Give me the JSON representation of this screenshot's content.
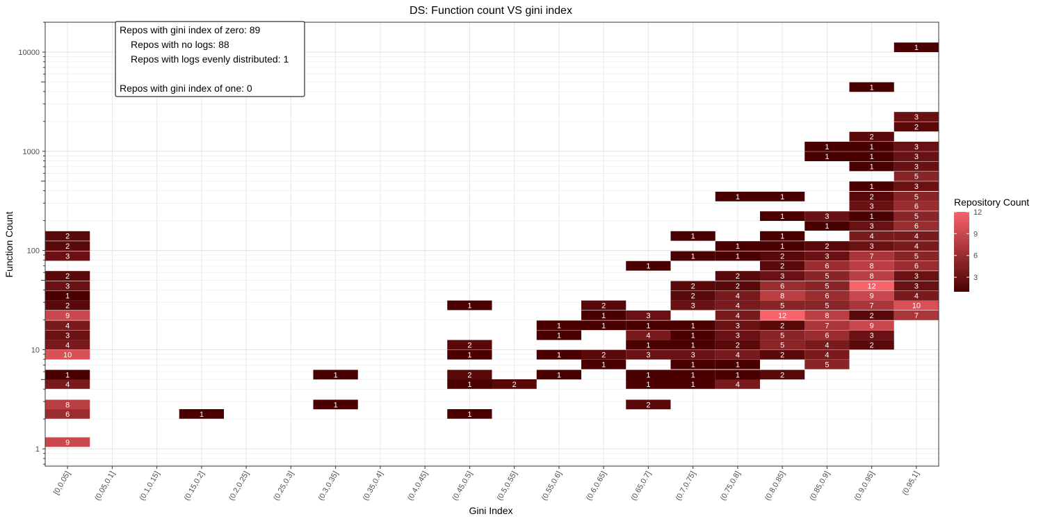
{
  "chart_data": {
    "type": "heatmap",
    "title": "DS: Function count VS gini index",
    "xlabel": "Gini Index",
    "ylabel": "Function Count",
    "y_scale": "log10",
    "ylim": [
      0.67,
      20000
    ],
    "grid": true,
    "legend_placement": "right",
    "legend": {
      "title": "Repository Count",
      "range": [
        1,
        12
      ],
      "ticks": [
        3,
        6,
        9,
        12
      ],
      "color_low": "#4a0000",
      "color_high": "#f8636a"
    },
    "x_categories": [
      "[0,0.05]",
      "(0.05,0.1]",
      "(0.1,0.15]",
      "(0.15,0.2]",
      "(0.2,0.25]",
      "(0.25,0.3]",
      "(0.3,0.35]",
      "(0.35,0.4]",
      "(0.4,0.45]",
      "(0.45,0.5]",
      "(0.5,0.55]",
      "(0.55,0.6]",
      "(0.6,0.65]",
      "(0.65,0.7]",
      "(0.7,0.75]",
      "(0.75,0.8]",
      "(0.8,0.85]",
      "(0.85,0.9]",
      "(0.9,0.95]",
      "(0.95,1]"
    ],
    "y_ticks": [
      {
        "value": 1,
        "label": "1"
      },
      {
        "value": 10,
        "label": "10"
      },
      {
        "value": 100,
        "label": "100"
      },
      {
        "value": 1000,
        "label": "1000"
      },
      {
        "value": 10000,
        "label": "10000"
      }
    ],
    "cell_log_height": 0.0966,
    "cells": [
      {
        "x": 0,
        "y": 1.17,
        "count": 9
      },
      {
        "x": 0,
        "y": 2.25,
        "count": 6
      },
      {
        "x": 0,
        "y": 2.8,
        "count": 8
      },
      {
        "x": 0,
        "y": 4.5,
        "count": 4
      },
      {
        "x": 0,
        "y": 5.6,
        "count": 1
      },
      {
        "x": 0,
        "y": 8.9,
        "count": 10
      },
      {
        "x": 0,
        "y": 11.2,
        "count": 4
      },
      {
        "x": 0,
        "y": 14,
        "count": 3
      },
      {
        "x": 0,
        "y": 17.6,
        "count": 4
      },
      {
        "x": 0,
        "y": 22.2,
        "count": 9
      },
      {
        "x": 0,
        "y": 28,
        "count": 2
      },
      {
        "x": 0,
        "y": 35,
        "count": 1
      },
      {
        "x": 0,
        "y": 44,
        "count": 3
      },
      {
        "x": 0,
        "y": 55.5,
        "count": 2
      },
      {
        "x": 0,
        "y": 88,
        "count": 3
      },
      {
        "x": 0,
        "y": 111,
        "count": 2
      },
      {
        "x": 0,
        "y": 140,
        "count": 2
      },
      {
        "x": 3,
        "y": 2.25,
        "count": 1
      },
      {
        "x": 6,
        "y": 2.8,
        "count": 1
      },
      {
        "x": 6,
        "y": 5.6,
        "count": 1
      },
      {
        "x": 9,
        "y": 2.25,
        "count": 1
      },
      {
        "x": 9,
        "y": 4.5,
        "count": 1
      },
      {
        "x": 9,
        "y": 5.6,
        "count": 2
      },
      {
        "x": 9,
        "y": 8.9,
        "count": 1
      },
      {
        "x": 9,
        "y": 11.2,
        "count": 2
      },
      {
        "x": 9,
        "y": 28,
        "count": 1
      },
      {
        "x": 10,
        "y": 4.5,
        "count": 2
      },
      {
        "x": 11,
        "y": 5.6,
        "count": 1
      },
      {
        "x": 11,
        "y": 8.9,
        "count": 1
      },
      {
        "x": 11,
        "y": 14,
        "count": 1
      },
      {
        "x": 11,
        "y": 17.6,
        "count": 1
      },
      {
        "x": 12,
        "y": 7.1,
        "count": 1
      },
      {
        "x": 12,
        "y": 8.9,
        "count": 2
      },
      {
        "x": 12,
        "y": 17.6,
        "count": 1
      },
      {
        "x": 12,
        "y": 22.2,
        "count": 1
      },
      {
        "x": 12,
        "y": 28,
        "count": 2
      },
      {
        "x": 13,
        "y": 2.8,
        "count": 2
      },
      {
        "x": 13,
        "y": 4.5,
        "count": 1
      },
      {
        "x": 13,
        "y": 5.6,
        "count": 1
      },
      {
        "x": 13,
        "y": 8.9,
        "count": 3
      },
      {
        "x": 13,
        "y": 11.2,
        "count": 1
      },
      {
        "x": 13,
        "y": 14,
        "count": 4
      },
      {
        "x": 13,
        "y": 17.6,
        "count": 1
      },
      {
        "x": 13,
        "y": 22.2,
        "count": 3
      },
      {
        "x": 13,
        "y": 70,
        "count": 1
      },
      {
        "x": 14,
        "y": 4.5,
        "count": 1
      },
      {
        "x": 14,
        "y": 5.6,
        "count": 1
      },
      {
        "x": 14,
        "y": 7.1,
        "count": 1
      },
      {
        "x": 14,
        "y": 8.9,
        "count": 3
      },
      {
        "x": 14,
        "y": 11.2,
        "count": 1
      },
      {
        "x": 14,
        "y": 14,
        "count": 1
      },
      {
        "x": 14,
        "y": 17.6,
        "count": 1
      },
      {
        "x": 14,
        "y": 28,
        "count": 3
      },
      {
        "x": 14,
        "y": 35,
        "count": 2
      },
      {
        "x": 14,
        "y": 44,
        "count": 2
      },
      {
        "x": 14,
        "y": 88,
        "count": 1
      },
      {
        "x": 14,
        "y": 140,
        "count": 1
      },
      {
        "x": 15,
        "y": 4.5,
        "count": 4
      },
      {
        "x": 15,
        "y": 5.6,
        "count": 1
      },
      {
        "x": 15,
        "y": 7.1,
        "count": 1
      },
      {
        "x": 15,
        "y": 8.9,
        "count": 4
      },
      {
        "x": 15,
        "y": 11.2,
        "count": 2
      },
      {
        "x": 15,
        "y": 14,
        "count": 3
      },
      {
        "x": 15,
        "y": 17.6,
        "count": 3
      },
      {
        "x": 15,
        "y": 22.2,
        "count": 4
      },
      {
        "x": 15,
        "y": 28,
        "count": 4
      },
      {
        "x": 15,
        "y": 35,
        "count": 4
      },
      {
        "x": 15,
        "y": 44,
        "count": 2
      },
      {
        "x": 15,
        "y": 55.5,
        "count": 2
      },
      {
        "x": 15,
        "y": 88,
        "count": 1
      },
      {
        "x": 15,
        "y": 111,
        "count": 1
      },
      {
        "x": 15,
        "y": 350,
        "count": 1
      },
      {
        "x": 16,
        "y": 5.6,
        "count": 2
      },
      {
        "x": 16,
        "y": 8.9,
        "count": 2
      },
      {
        "x": 16,
        "y": 11.2,
        "count": 5
      },
      {
        "x": 16,
        "y": 14,
        "count": 5
      },
      {
        "x": 16,
        "y": 17.6,
        "count": 2
      },
      {
        "x": 16,
        "y": 22.2,
        "count": 12
      },
      {
        "x": 16,
        "y": 28,
        "count": 5
      },
      {
        "x": 16,
        "y": 35,
        "count": 8
      },
      {
        "x": 16,
        "y": 44,
        "count": 6
      },
      {
        "x": 16,
        "y": 55.5,
        "count": 3
      },
      {
        "x": 16,
        "y": 70,
        "count": 2
      },
      {
        "x": 16,
        "y": 88,
        "count": 2
      },
      {
        "x": 16,
        "y": 111,
        "count": 1
      },
      {
        "x": 16,
        "y": 140,
        "count": 1
      },
      {
        "x": 16,
        "y": 222,
        "count": 1
      },
      {
        "x": 16,
        "y": 350,
        "count": 1
      },
      {
        "x": 17,
        "y": 7.1,
        "count": 5
      },
      {
        "x": 17,
        "y": 8.9,
        "count": 4
      },
      {
        "x": 17,
        "y": 11.2,
        "count": 4
      },
      {
        "x": 17,
        "y": 14,
        "count": 6
      },
      {
        "x": 17,
        "y": 17.6,
        "count": 7
      },
      {
        "x": 17,
        "y": 22.2,
        "count": 8
      },
      {
        "x": 17,
        "y": 28,
        "count": 5
      },
      {
        "x": 17,
        "y": 35,
        "count": 6
      },
      {
        "x": 17,
        "y": 44,
        "count": 5
      },
      {
        "x": 17,
        "y": 55.5,
        "count": 5
      },
      {
        "x": 17,
        "y": 70,
        "count": 6
      },
      {
        "x": 17,
        "y": 88,
        "count": 3
      },
      {
        "x": 17,
        "y": 111,
        "count": 2
      },
      {
        "x": 17,
        "y": 177,
        "count": 1
      },
      {
        "x": 17,
        "y": 222,
        "count": 3
      },
      {
        "x": 17,
        "y": 888,
        "count": 1
      },
      {
        "x": 17,
        "y": 1117,
        "count": 1
      },
      {
        "x": 18,
        "y": 11.2,
        "count": 2
      },
      {
        "x": 18,
        "y": 14,
        "count": 3
      },
      {
        "x": 18,
        "y": 17.6,
        "count": 9
      },
      {
        "x": 18,
        "y": 22.2,
        "count": 2
      },
      {
        "x": 18,
        "y": 28,
        "count": 7
      },
      {
        "x": 18,
        "y": 35,
        "count": 9
      },
      {
        "x": 18,
        "y": 44,
        "count": 12
      },
      {
        "x": 18,
        "y": 55.5,
        "count": 8
      },
      {
        "x": 18,
        "y": 70,
        "count": 8
      },
      {
        "x": 18,
        "y": 88,
        "count": 7
      },
      {
        "x": 18,
        "y": 111,
        "count": 3
      },
      {
        "x": 18,
        "y": 140,
        "count": 4
      },
      {
        "x": 18,
        "y": 177,
        "count": 3
      },
      {
        "x": 18,
        "y": 222,
        "count": 1
      },
      {
        "x": 18,
        "y": 280,
        "count": 3
      },
      {
        "x": 18,
        "y": 350,
        "count": 2
      },
      {
        "x": 18,
        "y": 444,
        "count": 1
      },
      {
        "x": 18,
        "y": 705,
        "count": 1
      },
      {
        "x": 18,
        "y": 888,
        "count": 1
      },
      {
        "x": 18,
        "y": 1117,
        "count": 1
      },
      {
        "x": 18,
        "y": 1406,
        "count": 2
      },
      {
        "x": 18,
        "y": 4440,
        "count": 1
      },
      {
        "x": 19,
        "y": 22.2,
        "count": 7
      },
      {
        "x": 19,
        "y": 28,
        "count": 10
      },
      {
        "x": 19,
        "y": 35,
        "count": 4
      },
      {
        "x": 19,
        "y": 44,
        "count": 3
      },
      {
        "x": 19,
        "y": 55.5,
        "count": 3
      },
      {
        "x": 19,
        "y": 70,
        "count": 6
      },
      {
        "x": 19,
        "y": 88,
        "count": 5
      },
      {
        "x": 19,
        "y": 111,
        "count": 4
      },
      {
        "x": 19,
        "y": 140,
        "count": 4
      },
      {
        "x": 19,
        "y": 177,
        "count": 6
      },
      {
        "x": 19,
        "y": 222,
        "count": 5
      },
      {
        "x": 19,
        "y": 280,
        "count": 6
      },
      {
        "x": 19,
        "y": 350,
        "count": 5
      },
      {
        "x": 19,
        "y": 444,
        "count": 3
      },
      {
        "x": 19,
        "y": 560,
        "count": 5
      },
      {
        "x": 19,
        "y": 705,
        "count": 3
      },
      {
        "x": 19,
        "y": 888,
        "count": 3
      },
      {
        "x": 19,
        "y": 1117,
        "count": 3
      },
      {
        "x": 19,
        "y": 1770,
        "count": 2
      },
      {
        "x": 19,
        "y": 2230,
        "count": 3
      },
      {
        "x": 19,
        "y": 11170,
        "count": 1
      }
    ]
  },
  "annotation": {
    "lines": [
      "Repos with gini index of zero: 89",
      "Repos with no logs: 88",
      "Repos with logs evenly distributed: 1",
      "",
      "Repos with gini index of one: 0"
    ]
  }
}
